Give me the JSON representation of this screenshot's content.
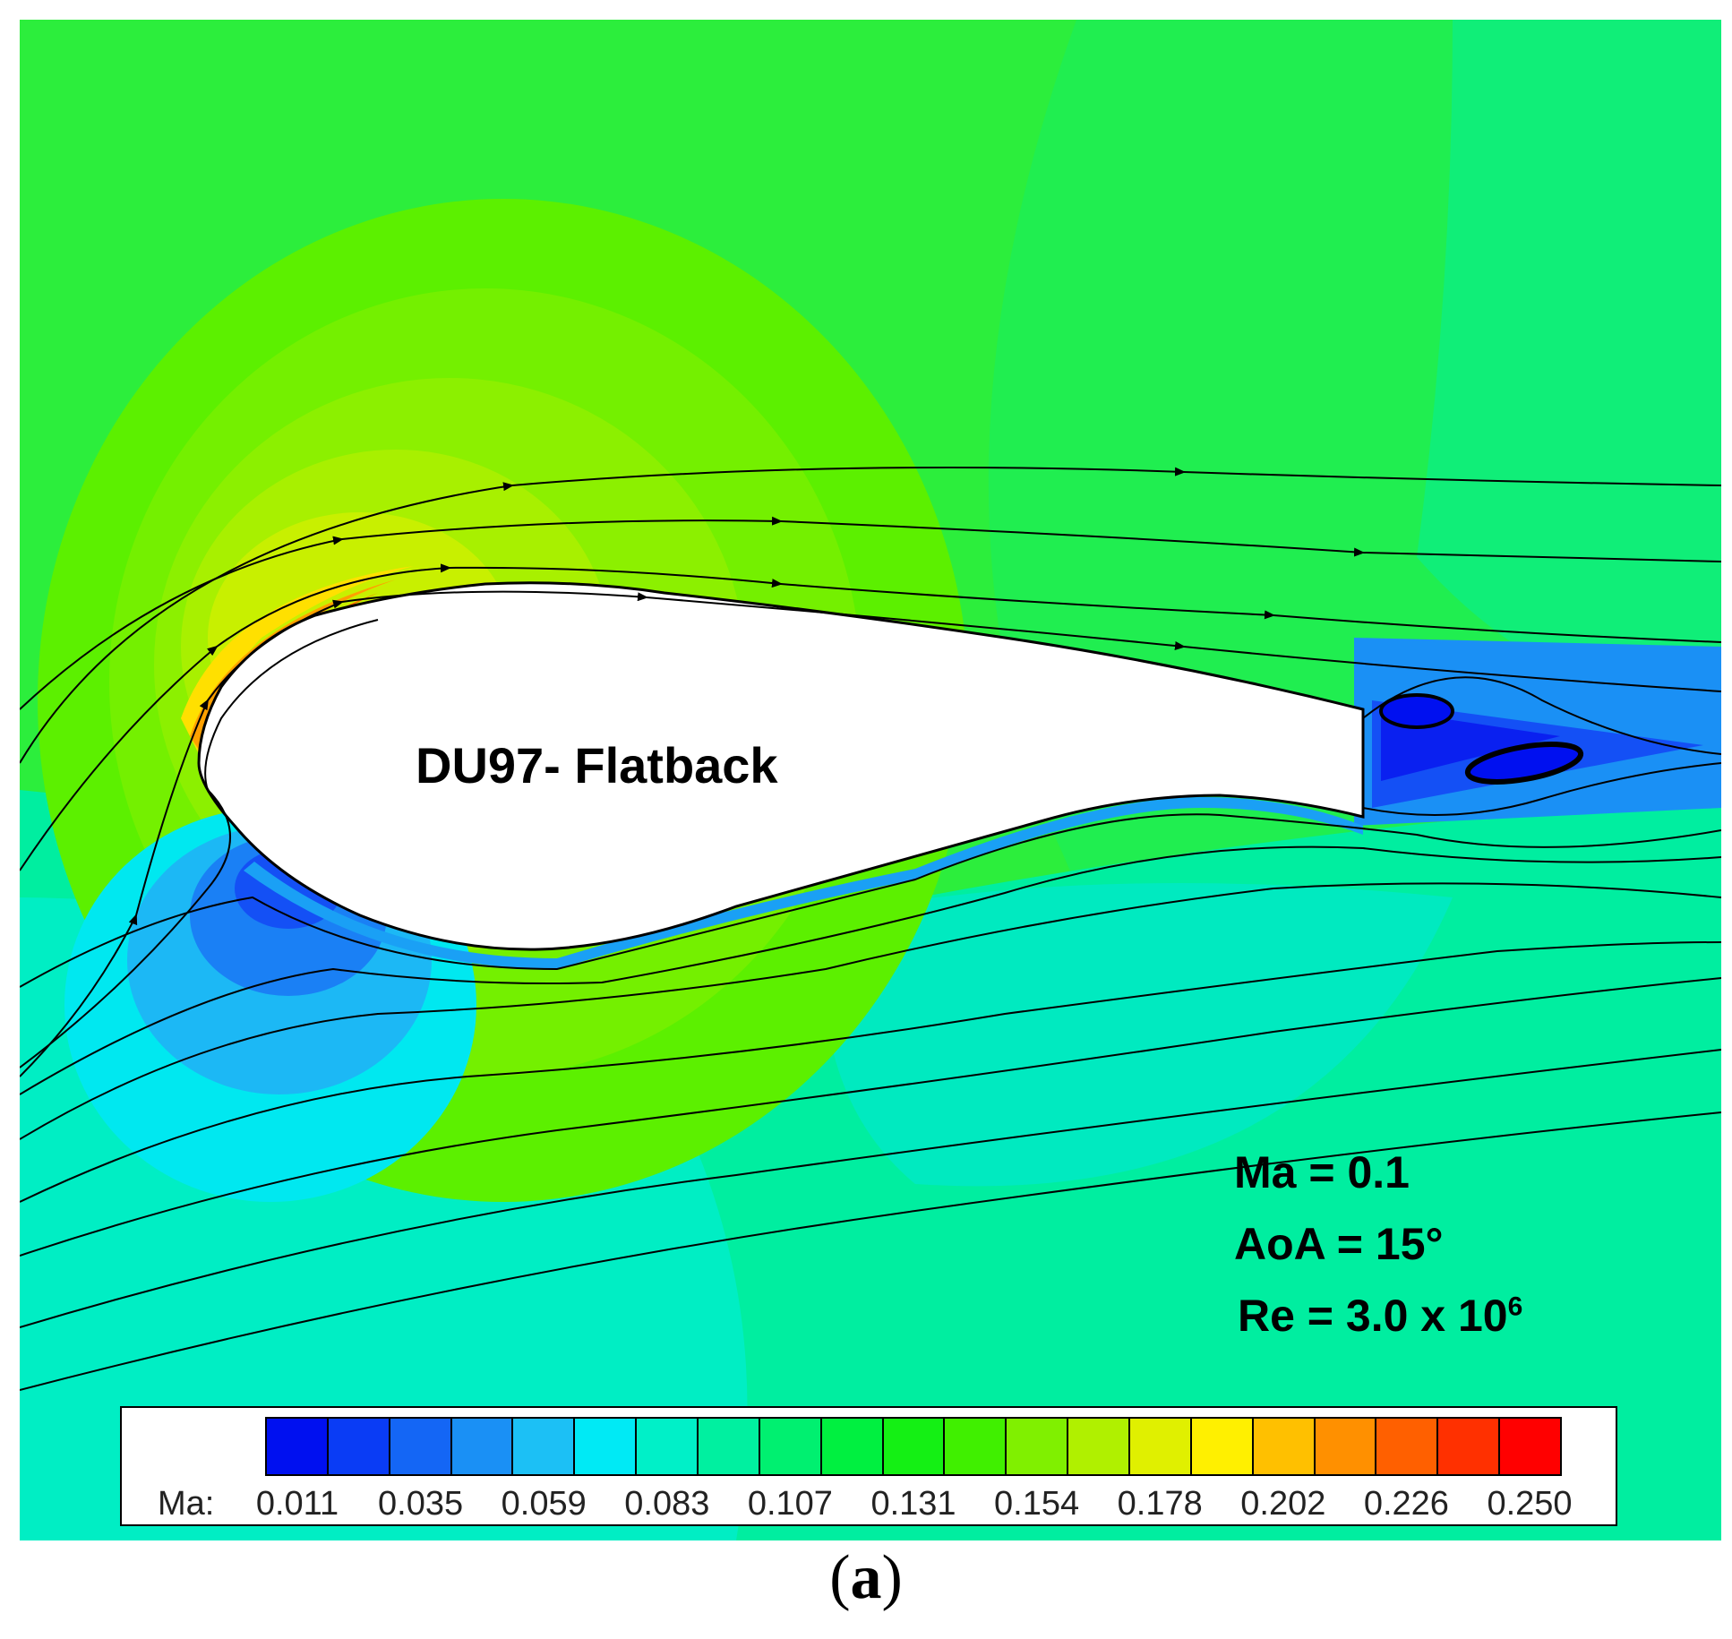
{
  "figure": {
    "airfoil_label": "DU97- Flatback",
    "conditions": {
      "ma": "Ma = 0.1",
      "aoa": "AoA = 15°",
      "re_prefix": "Re = 3.0 x 10",
      "re_exponent": "6"
    },
    "caption_open": "(",
    "caption_letter": "a",
    "caption_close": ")"
  },
  "legend": {
    "title": "Ma:",
    "tick_labels": [
      "0.011",
      "0.035",
      "0.059",
      "0.083",
      "0.107",
      "0.131",
      "0.154",
      "0.178",
      "0.202",
      "0.226",
      "0.250"
    ],
    "colors": [
      "#0010f0",
      "#0a3cf5",
      "#1466f5",
      "#1a90f5",
      "#1cc0f5",
      "#00eaf5",
      "#00f0c8",
      "#00f0a0",
      "#00f070",
      "#00f040",
      "#14f014",
      "#40f000",
      "#80f000",
      "#b0f000",
      "#e0f000",
      "#fff000",
      "#ffc000",
      "#ff9000",
      "#ff6000",
      "#ff3000",
      "#ff0000"
    ]
  },
  "colors": {
    "far_field": "#24ee48",
    "lower_field": "#00f0a8",
    "upper_accel": "#a8f000",
    "peak": "#ff7000",
    "low_speed": "#1a6ef5",
    "wake": "#0a20f0"
  }
}
